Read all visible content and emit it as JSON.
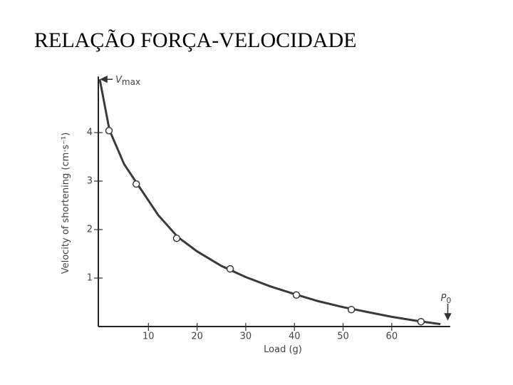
{
  "chart_data": {
    "type": "scatter",
    "title": "RELAÇÃO FORÇA-VELOCIDADE",
    "xlabel": "Load (g)",
    "ylabel": "Velocity of shortening (cm·s⁻¹)",
    "annotations": [
      {
        "text": "V",
        "sub": "max",
        "x": 0,
        "y": 5.1
      },
      {
        "text": "P",
        "sub": "0",
        "x": 68,
        "y": 0
      }
    ],
    "xlim": [
      0,
      72
    ],
    "ylim": [
      0,
      5.1
    ],
    "xticks": [
      10,
      20,
      30,
      40,
      50,
      60
    ],
    "yticks": [
      1,
      2,
      3,
      4
    ],
    "grid": false,
    "series": [
      {
        "type": "line",
        "color": "#3a3a3a",
        "x": [
          0,
          2,
          5,
          8,
          12,
          16,
          20,
          25,
          30,
          35,
          40,
          45,
          50,
          55,
          60,
          65,
          70
        ],
        "values": [
          5.1,
          4.05,
          3.35,
          2.9,
          2.3,
          1.85,
          1.55,
          1.25,
          1.02,
          0.83,
          0.67,
          0.52,
          0.4,
          0.3,
          0.2,
          0.12,
          0.05
        ]
      },
      {
        "type": "scatter",
        "color": "#3a3a3a",
        "x": [
          1.9,
          7.5,
          15.8,
          26.8,
          40.4,
          51.7,
          66
        ],
        "values": [
          4.04,
          2.94,
          1.82,
          1.19,
          0.65,
          0.35,
          0.1
        ]
      }
    ]
  }
}
